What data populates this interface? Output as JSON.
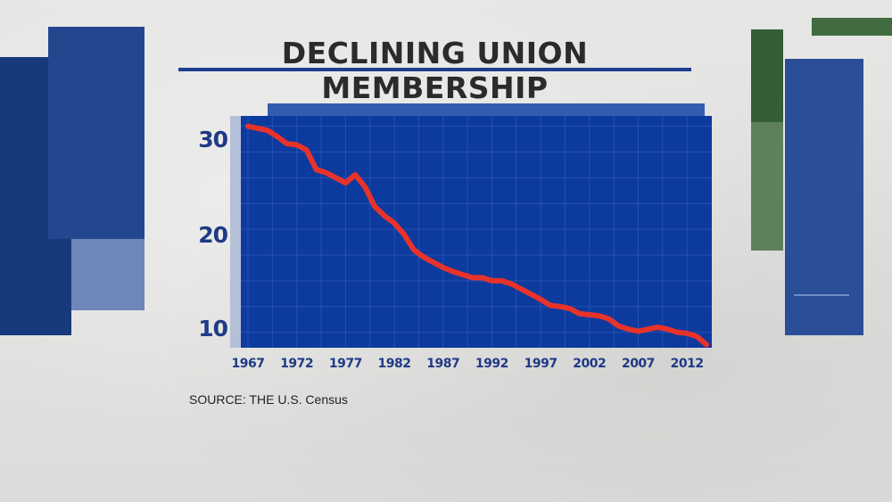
{
  "title": "DECLINING UNION MEMBERSHIP",
  "source": "SOURCE: THE U.S. Census",
  "colors": {
    "plot_bg": "#0d3a9e",
    "grid": "#3a64c2",
    "line": "#e8332a",
    "axis_text": "#1f3a86",
    "title_text": "#2b2b2b",
    "accent_blue": "#1f3d8f",
    "accent_green": "#3f6b3c"
  },
  "chart_data": {
    "type": "line",
    "title": "DECLINING UNION MEMBERSHIP",
    "xlabel": "",
    "ylabel": "",
    "x_ticks": [
      "1967",
      "1972",
      "1977",
      "1982",
      "1987",
      "1992",
      "1997",
      "2002",
      "2007",
      "2012"
    ],
    "y_ticks": [
      "30",
      "20",
      "10"
    ],
    "xlim": [
      1967,
      2014
    ],
    "ylim": [
      8.5,
      31
    ],
    "grid": true,
    "series": [
      {
        "x": [
          1967,
          1968,
          1969,
          1970,
          1971,
          1972,
          1973,
          1974,
          1975,
          1976,
          1977,
          1978,
          1979,
          1980,
          1981,
          1982,
          1983,
          1984,
          1985,
          1986,
          1987,
          1988,
          1989,
          1990,
          1991,
          1992,
          1993,
          1994,
          1995,
          1996,
          1997,
          1998,
          1999,
          2000,
          2001,
          2002,
          2003,
          2004,
          2005,
          2006,
          2007,
          2008,
          2009,
          2010,
          2011,
          2012,
          2013,
          2014
        ],
        "y": [
          30.0,
          29.8,
          29.6,
          29.0,
          28.3,
          28.2,
          27.7,
          25.8,
          25.5,
          25.0,
          24.5,
          25.3,
          24.1,
          22.2,
          21.3,
          20.6,
          19.5,
          18.0,
          17.3,
          16.8,
          16.3,
          15.9,
          15.6,
          15.3,
          15.3,
          15.0,
          15.0,
          14.7,
          14.2,
          13.7,
          13.2,
          12.6,
          12.5,
          12.3,
          11.8,
          11.7,
          11.6,
          11.3,
          10.6,
          10.3,
          10.1,
          10.3,
          10.5,
          10.3,
          10.0,
          9.9,
          9.6,
          8.8
        ]
      }
    ]
  }
}
